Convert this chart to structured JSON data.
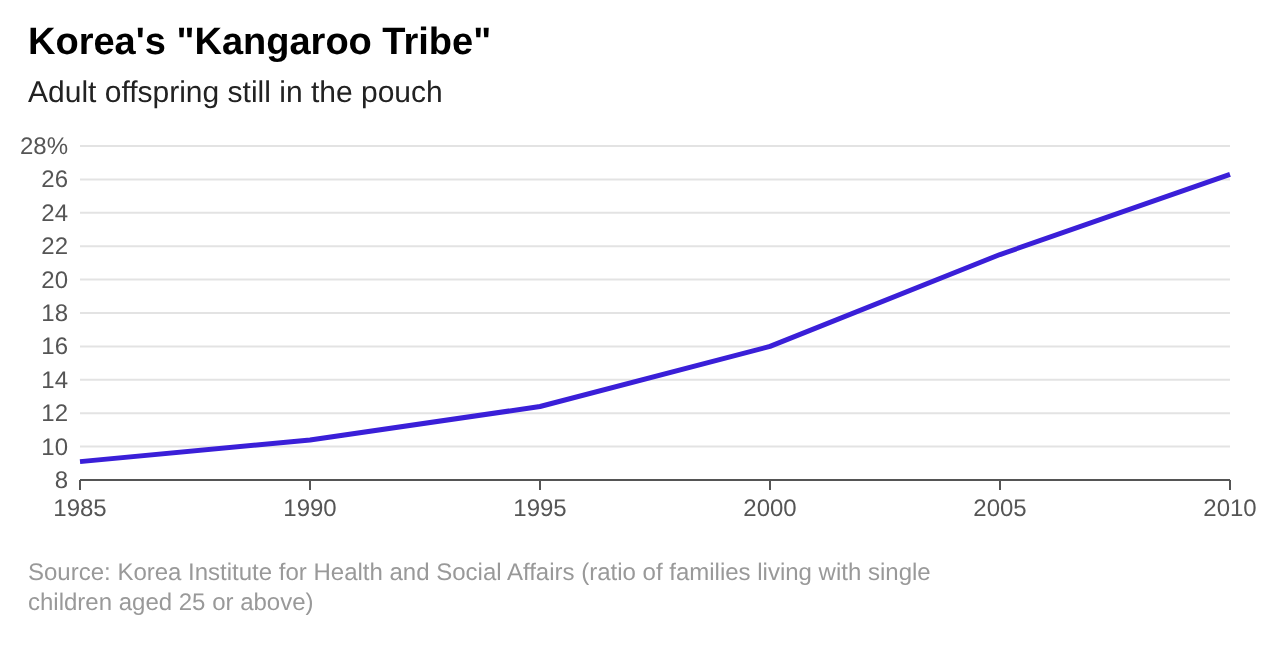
{
  "chart_data": {
    "type": "line",
    "title": "Korea's \"Kangaroo Tribe\"",
    "subtitle": "Adult offspring still in the pouch",
    "x": [
      1985,
      1990,
      1995,
      2000,
      2005,
      2010
    ],
    "series": [
      {
        "color": "#3a1fd8",
        "values": [
          9.1,
          10.4,
          12.4,
          16.0,
          21.5,
          26.3
        ]
      }
    ],
    "xlim": [
      1985,
      2010
    ],
    "xticks": [
      1985,
      1990,
      1995,
      2000,
      2005,
      2010
    ],
    "ylim": [
      8,
      28
    ],
    "yticks": [
      8,
      10,
      12,
      14,
      16,
      18,
      20,
      22,
      24,
      26,
      {
        "value": 28,
        "label": "28%"
      }
    ],
    "grid": "y",
    "marker": "none",
    "line_style": "solid",
    "annotations": [
      "Source: Korea Institute for Health and Social Affairs (ratio of families living with single children aged 25 or above)"
    ]
  }
}
